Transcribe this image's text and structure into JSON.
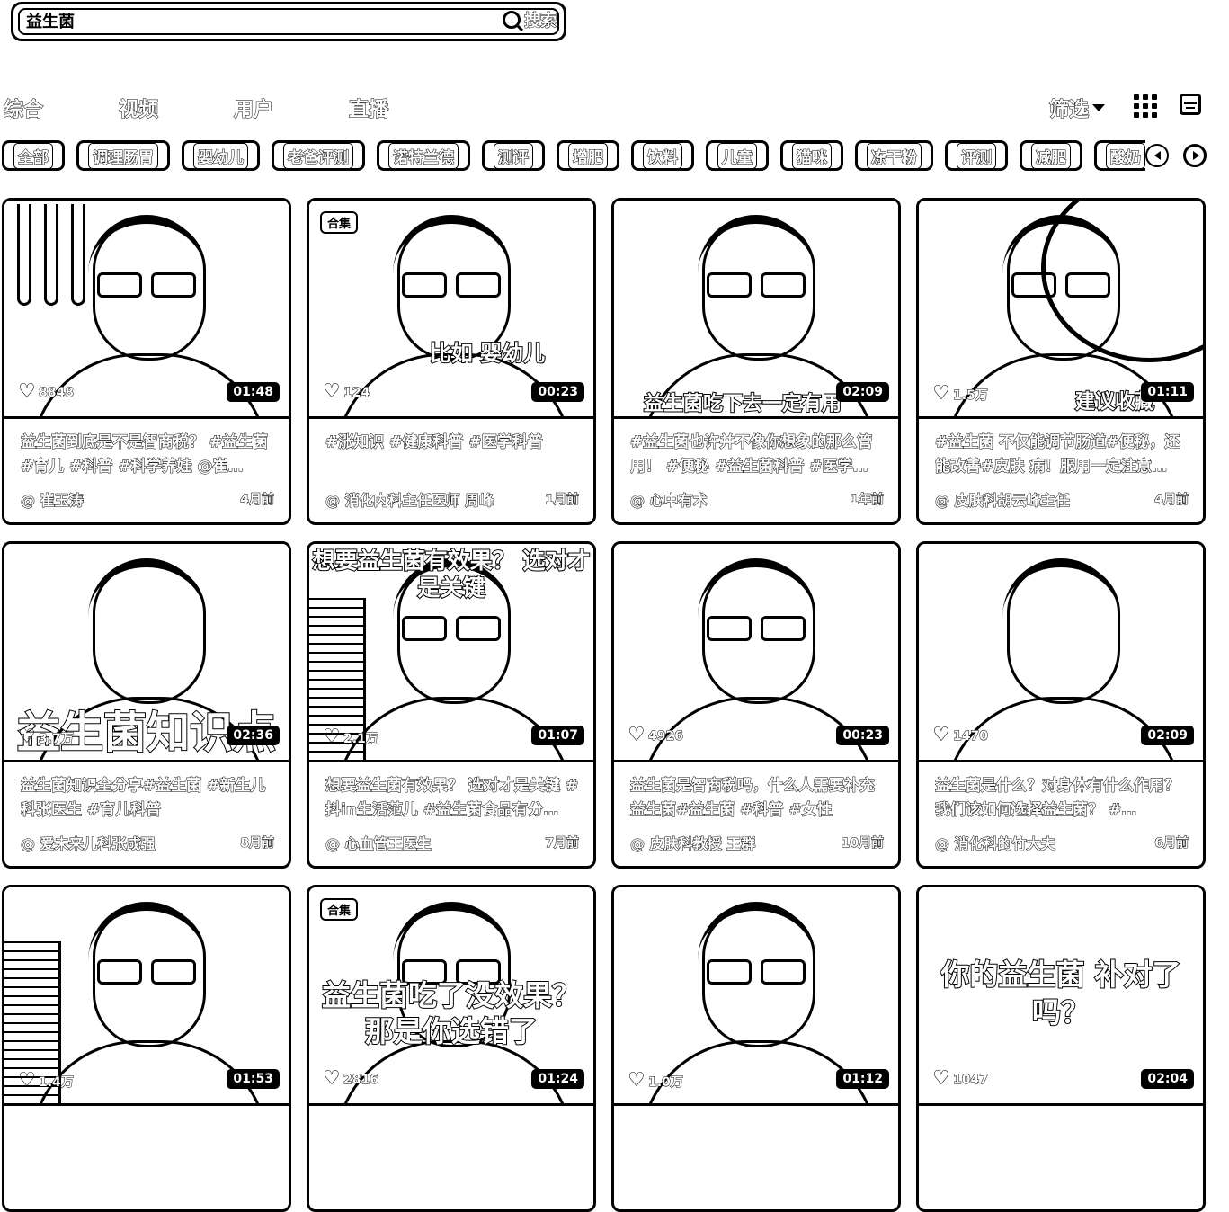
{
  "search": {
    "value": "益生菌",
    "button_label": "搜索"
  },
  "tabs": [
    "综合",
    "视频",
    "用户",
    "直播"
  ],
  "filter_label": "筛选",
  "chips": [
    "全部",
    "调理肠胃",
    "婴幼儿",
    "老爸评测",
    "诺特兰德",
    "测评",
    "增肥",
    "饮料",
    "儿童",
    "猫咪",
    "冻干粉",
    "评测",
    "减肥",
    "酸奶",
    "婴儿"
  ],
  "cards": [
    {
      "likes": "8848",
      "duration": "01:48",
      "badge": "",
      "overlay": "",
      "desc": "益生菌到底是不是智商税？ #益生菌 #育儿 #科普 #科学养娃 @崔…",
      "author": "@ 崔玉涛",
      "time": "4月前"
    },
    {
      "likes": "124",
      "duration": "00:23",
      "badge": "合集",
      "overlay": "比如 婴幼儿",
      "desc": "#涨知识 #健康科普 #医学科普",
      "author": "@ 消化内科主任医师 周峰",
      "time": "1月前"
    },
    {
      "likes": "",
      "duration": "02:09",
      "badge": "",
      "overlay": "益生菌吃下去一定有用",
      "desc": "#益生菌也许并不像你想象的那么管用！ #便秘 #益生菌科普 #医学…",
      "author": "@ 心中有术",
      "time": "1年前"
    },
    {
      "likes": "1.5万",
      "duration": "01:11",
      "badge": "",
      "overlay": "建议收藏",
      "desc": "#益生菌 不仅能调节肠道#便秘，还能改善#皮肤 病！服用一定注意…",
      "author": "@ 皮肤科胡云峰主任",
      "time": "4月前"
    },
    {
      "likes": "3.7万",
      "duration": "02:36",
      "badge": "",
      "overlay": "益生菌知识点",
      "desc": "益生菌知识全分享#益生菌 #新生儿科张医生 #育儿科普",
      "author": "@ 爱未来儿科张成强",
      "time": "8月前"
    },
    {
      "likes": "2.1万",
      "duration": "01:07",
      "badge": "",
      "overlay": "想要益生菌有效果？ 选对才是关键",
      "desc": "想要益生菌有效果？ 选对才是关键 #抖in生活范儿 #益生菌食品有分…",
      "author": "@ 心血管王医生",
      "time": "7月前"
    },
    {
      "likes": "4926",
      "duration": "00:23",
      "badge": "",
      "overlay": "",
      "desc": "益生菌是智商税吗，什么人需要补充益生菌#益生菌 #科普 #女性",
      "author": "@ 皮肤科教授 王群",
      "time": "10月前"
    },
    {
      "likes": "1470",
      "duration": "02:09",
      "badge": "",
      "overlay": "",
      "desc": "益生菌是什么？对身体有什么作用？我们该如何选择益生菌？ #…",
      "author": "@ 消化科的竹大夫",
      "time": "6月前"
    },
    {
      "likes": "1.4万",
      "duration": "01:53",
      "badge": "",
      "overlay": "",
      "desc": "",
      "author": "",
      "time": ""
    },
    {
      "likes": "2816",
      "duration": "01:24",
      "badge": "合集",
      "overlay": "益生菌吃了没效果？ 那是你选错了",
      "desc": "",
      "author": "",
      "time": ""
    },
    {
      "likes": "1.0万",
      "duration": "01:12",
      "badge": "",
      "overlay": "",
      "desc": "",
      "author": "",
      "time": ""
    },
    {
      "likes": "1047",
      "duration": "02:04",
      "badge": "",
      "overlay": "你的益生菌 补对了吗？",
      "desc": "",
      "author": "",
      "time": ""
    }
  ]
}
